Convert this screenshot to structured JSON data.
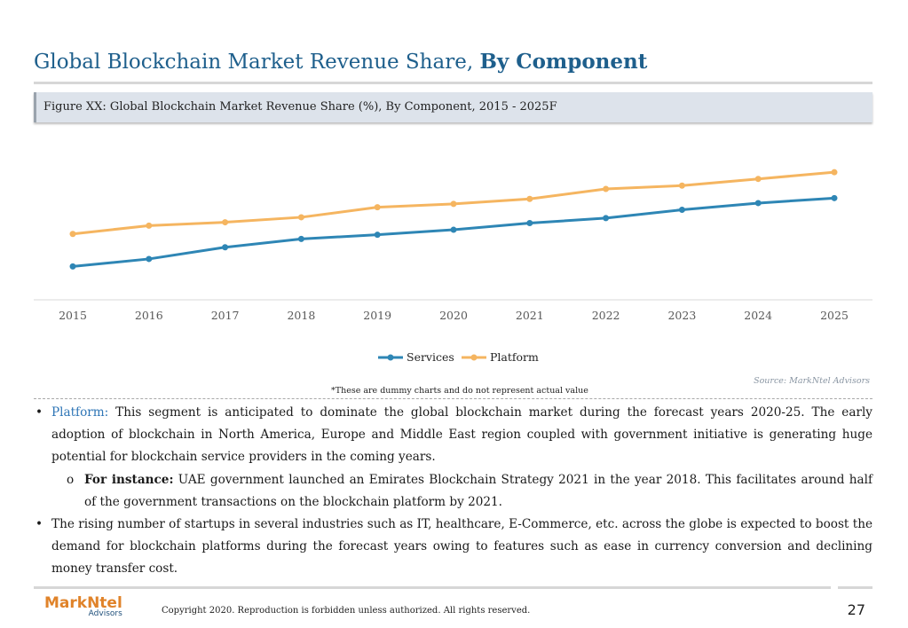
{
  "header": {
    "title_part1": "Global Blockchain Market Revenue Share, ",
    "title_part2": "By Component",
    "figure_caption": "Figure XX: Global Blockchain Market Revenue Share (%), By Component, 2015 - 2025F"
  },
  "chart_data": {
    "type": "line",
    "x": [
      "2015",
      "2016",
      "2017",
      "2018",
      "2019",
      "2020",
      "2021",
      "2022",
      "2023",
      "2024",
      "2025"
    ],
    "series": [
      {
        "name": "Services",
        "color": "#2e86b5",
        "values": [
          20,
          24.5,
          31.5,
          36.5,
          39,
          42,
          46,
          49,
          54,
          58,
          61
        ]
      },
      {
        "name": "Platform",
        "color": "#f5b560",
        "values": [
          39.5,
          44.5,
          46.5,
          49.5,
          55.5,
          57.5,
          60.5,
          66.5,
          68.5,
          72.5,
          76.5
        ]
      }
    ],
    "ylim": [
      0,
      100
    ],
    "grid": false,
    "legend_position": "bottom"
  },
  "notes": {
    "source": "Source: MarkNtel Advisors",
    "dummy": "*These are dummy charts and do not represent actual value"
  },
  "content": {
    "bullet1_label": "Platform:",
    "bullet1_text": " This segment is anticipated to dominate the global blockchain market during the forecast years 2020-25. The early adoption of blockchain in North America, Europe and Middle East region coupled with government initiative is generating huge potential for blockchain service providers in the coming years.",
    "sub1_label": "For instance:",
    "sub1_text": " UAE government launched an Emirates Blockchain Strategy 2021 in the year 2018. This facilitates around half of the government transactions on the blockchain platform by 2021.",
    "bullet2_text": "The rising number of startups in several industries such as IT, healthcare, E-Commerce, etc. across the globe is expected to boost the demand for blockchain platforms during the forecast years owing to features such as ease in currency conversion and declining money transfer cost."
  },
  "footer": {
    "logo_main": "MarkNtel",
    "logo_sub": "Advisors",
    "copyright": "Copyright 2020. Reproduction is forbidden unless authorized. All rights reserved.",
    "page_number": "27"
  }
}
